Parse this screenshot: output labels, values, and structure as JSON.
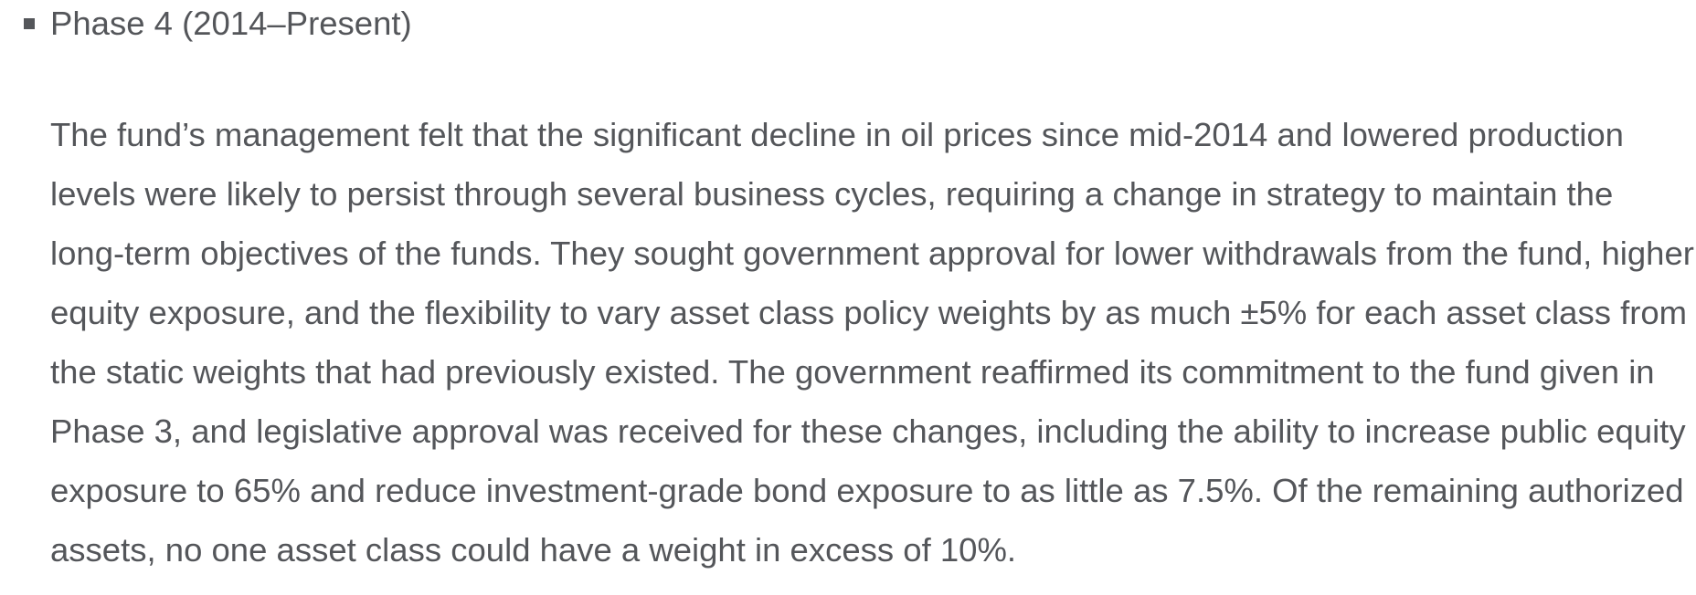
{
  "page": {
    "background_color": "#ffffff",
    "text_color": "#54565a"
  },
  "list_item": {
    "bullet_icon": "square-bullet",
    "title": "Phase 4 (2014–Present)"
  },
  "paragraph": {
    "text": "The fund’s management felt that the significant decline in oil prices since mid-2014 and lowered production levels were likely to persist through several business cycles, requiring a change in strategy to maintain the long-term objectives of the funds. They sought government approval for lower withdrawals from the fund, higher equity exposure, and the flexibility to vary asset class policy weights by as much ±5% for each asset class from the static weights that had previously existed. The government reaffirmed its commitment to the fund given in Phase 3, and legislative approval was received for these changes, including the ability to increase public equity exposure to 65% and reduce investment-grade bond exposure to as little as 7.5%. Of the remaining authorized assets, no one asset class could have a weight in excess of 10%."
  }
}
